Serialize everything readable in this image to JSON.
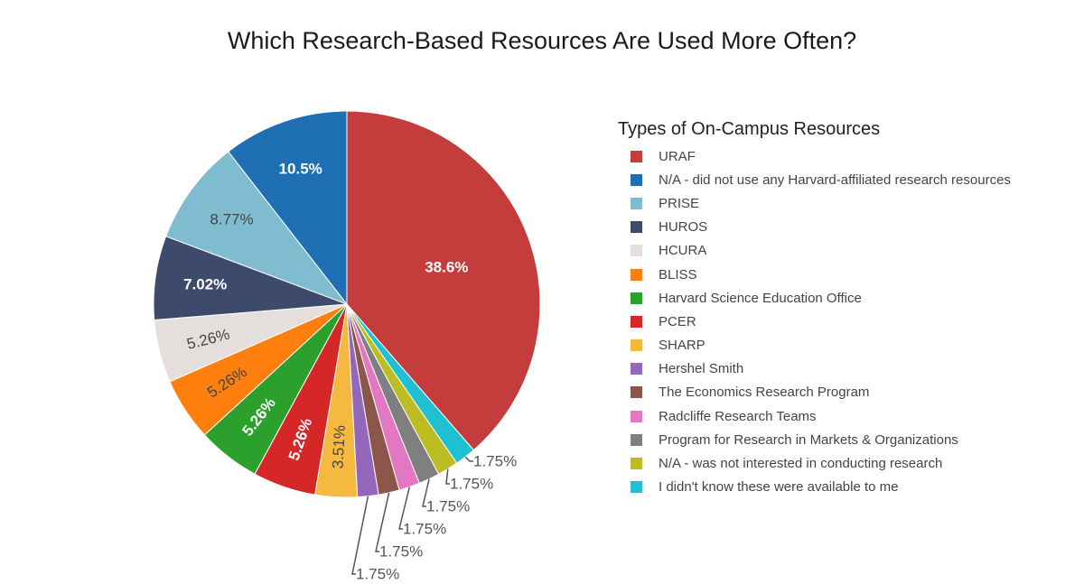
{
  "chart_data": {
    "type": "pie",
    "title": "Which Research-Based Resources Are Used More Often?",
    "legend_title": "Types of On-Campus Resources",
    "legend_position": "right",
    "slices": [
      {
        "label": "URAF",
        "value": 38.6,
        "display": "38.6%",
        "color": "#c43c3c",
        "label_color": "#ffffff"
      },
      {
        "label": "I didn't know these were available to me",
        "value": 1.75,
        "display": "1.75%",
        "color": "#1ec0d2",
        "label_color": "#555555"
      },
      {
        "label": "N/A - was not interested in conducting research",
        "value": 1.75,
        "display": "1.75%",
        "color": "#bcbd22",
        "label_color": "#555555"
      },
      {
        "label": "Program for Research in Markets & Organizations",
        "value": 1.75,
        "display": "1.75%",
        "color": "#7f7f7f",
        "label_color": "#555555"
      },
      {
        "label": "Radcliffe Research Teams",
        "value": 1.75,
        "display": "1.75%",
        "color": "#e377c2",
        "label_color": "#555555"
      },
      {
        "label": "The Economics Research Program",
        "value": 1.75,
        "display": "1.75%",
        "color": "#8c564b",
        "label_color": "#555555"
      },
      {
        "label": "Hershel Smith",
        "value": 1.75,
        "display": "1.75%",
        "color": "#9467bd",
        "label_color": "#555555"
      },
      {
        "label": "SHARP",
        "value": 3.51,
        "display": "3.51%",
        "color": "#f5b942",
        "label_color": "#444444"
      },
      {
        "label": "PCER",
        "value": 5.26,
        "display": "5.26%",
        "color": "#d62728",
        "label_color": "#ffffff"
      },
      {
        "label": "Harvard Science Education Office",
        "value": 5.26,
        "display": "5.26%",
        "color": "#2ca02c",
        "label_color": "#ffffff"
      },
      {
        "label": "BLISS",
        "value": 5.26,
        "display": "5.26%",
        "color": "#ff7f0e",
        "label_color": "#444444"
      },
      {
        "label": "HCURA",
        "value": 5.26,
        "display": "5.26%",
        "color": "#e4dfdc",
        "label_color": "#444444"
      },
      {
        "label": "HUROS",
        "value": 7.02,
        "display": "7.02%",
        "color": "#3d4a6b",
        "label_color": "#ffffff"
      },
      {
        "label": "PRISE",
        "value": 8.77,
        "display": "8.77%",
        "color": "#7fbcd0",
        "label_color": "#444444"
      },
      {
        "label": "N/A - did not use any Harvard-affiliated research resources",
        "value": 10.5,
        "display": "10.5%",
        "color": "#1f6fb4",
        "label_color": "#ffffff"
      }
    ],
    "legend_order": [
      "URAF",
      "N/A - did not use any Harvard-affiliated research resources",
      "PRISE",
      "HUROS",
      "HCURA",
      "BLISS",
      "Harvard Science Education Office",
      "PCER",
      "SHARP",
      "Hershel Smith",
      "The Economics Research Program",
      "Radcliffe Research Teams",
      "Program for Research in Markets & Organizations",
      "N/A - was not interested in conducting research",
      "I didn't know these were available to me"
    ]
  }
}
